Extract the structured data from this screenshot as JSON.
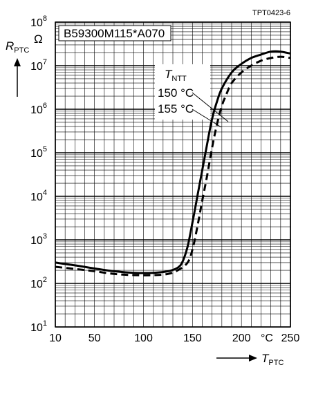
{
  "chart_data": {
    "type": "line",
    "figure_id": "TPT0423-6",
    "part_number": "B59300M115*A070",
    "ylabel_main": "R",
    "ylabel_sub": "PTC",
    "y_unit": "Ω",
    "xlabel_main": "T",
    "xlabel_sub": "PTC",
    "x_unit": "°C",
    "x_scale": "linear",
    "y_scale": "log",
    "xlim": [
      10,
      250
    ],
    "ylim": [
      10,
      100000000
    ],
    "x_ticks": [
      "10",
      "50",
      "100",
      "150",
      "200",
      "250"
    ],
    "y_ticks": [
      {
        "base": "10",
        "exp": "1"
      },
      {
        "base": "10",
        "exp": "2"
      },
      {
        "base": "10",
        "exp": "3"
      },
      {
        "base": "10",
        "exp": "4"
      },
      {
        "base": "10",
        "exp": "5"
      },
      {
        "base": "10",
        "exp": "6"
      },
      {
        "base": "10",
        "exp": "7"
      },
      {
        "base": "10",
        "exp": "8"
      }
    ],
    "grid": true,
    "legend": {
      "title_main": "T",
      "title_sub": "NTT",
      "entries": [
        "150 °C",
        "155 °C"
      ]
    },
    "series": [
      {
        "name": "150 °C",
        "style": "solid",
        "x": [
          10,
          30,
          50,
          70,
          90,
          110,
          125,
          135,
          140,
          145,
          150,
          155,
          160,
          165,
          170,
          175,
          180,
          190,
          200,
          210,
          220,
          230,
          240,
          250
        ],
        "y": [
          300,
          260,
          220,
          190,
          175,
          175,
          190,
          230,
          320,
          700,
          2500,
          10000,
          40000,
          160000,
          600000,
          1500000,
          3000000,
          7000000,
          11000000,
          15000000,
          18000000,
          21000000,
          21000000,
          19000000
        ]
      },
      {
        "name": "155 °C",
        "style": "dashed",
        "x": [
          10,
          30,
          50,
          70,
          90,
          110,
          125,
          135,
          145,
          150,
          155,
          160,
          165,
          170,
          175,
          180,
          185,
          190,
          200,
          210,
          220,
          230,
          240,
          250
        ],
        "y": [
          240,
          215,
          190,
          165,
          155,
          155,
          165,
          200,
          300,
          600,
          2000,
          8000,
          30000,
          130000,
          450000,
          1200000,
          2300000,
          4000000,
          7000000,
          10000000,
          13000000,
          15000000,
          16000000,
          15000000
        ]
      }
    ]
  }
}
